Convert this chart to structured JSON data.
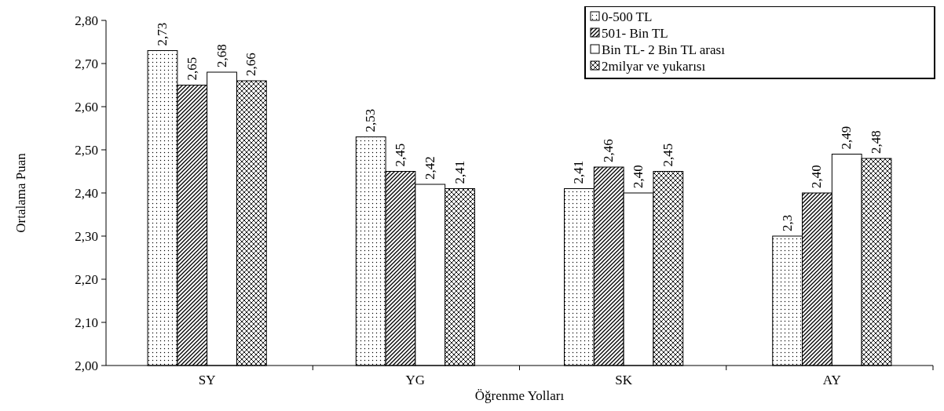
{
  "chart_data": {
    "type": "bar",
    "xlabel": "Öğrenme Yolları",
    "ylabel": "Ortalama Puan",
    "categories": [
      "SY",
      "YG",
      "SK",
      "AY"
    ],
    "series": [
      {
        "name": "0-500 TL",
        "color": "#000000",
        "values": [
          2.73,
          2.53,
          2.41,
          2.3
        ],
        "value_labels": [
          "2,73",
          "2,53",
          "2,41",
          "2,3"
        ]
      },
      {
        "name": "501- Bin TL",
        "color": "#000000",
        "values": [
          2.65,
          2.45,
          2.46,
          2.4
        ],
        "value_labels": [
          "2,65",
          "2,45",
          "2,46",
          "2,40"
        ]
      },
      {
        "name": "Bin TL- 2 Bin TL arası",
        "color": "#000000",
        "values": [
          2.68,
          2.42,
          2.4,
          2.49
        ],
        "value_labels": [
          "2,68",
          "2,42",
          "2,40",
          "2,49"
        ]
      },
      {
        "name": "2milyar ve  yukarısı",
        "color": "#000000",
        "values": [
          2.66,
          2.41,
          2.45,
          2.48
        ],
        "value_labels": [
          "2,66",
          "2,41",
          "2,45",
          "2,48"
        ]
      }
    ],
    "ylim": [
      2.0,
      2.8
    ],
    "yticks": [
      {
        "value": 2.0,
        "label": "2,00"
      },
      {
        "value": 2.1,
        "label": "2,10"
      },
      {
        "value": 2.2,
        "label": "2,20"
      },
      {
        "value": 2.3,
        "label": "2,30"
      },
      {
        "value": 2.4,
        "label": "2,40"
      },
      {
        "value": 2.5,
        "label": "2,50"
      },
      {
        "value": 2.6,
        "label": "2,60"
      },
      {
        "value": 2.7,
        "label": "2,70"
      },
      {
        "value": 2.8,
        "label": "2,80"
      }
    ],
    "grid": false,
    "legend": "top right"
  }
}
